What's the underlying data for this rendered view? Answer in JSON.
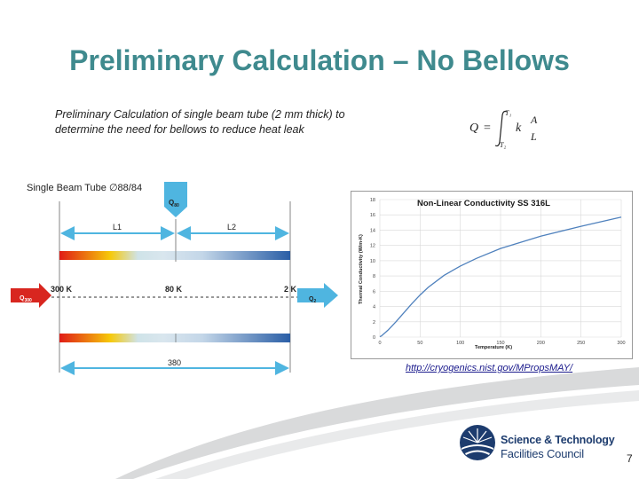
{
  "title": "Preliminary Calculation – No Bellows",
  "intro": {
    "line1": "Preliminary Calculation of single beam tube (2 mm thick) to",
    "line2": "determine the need for bellows to reduce heat leak"
  },
  "formula": {
    "lhs": "Q",
    "eq": "=",
    "upper": "T₁",
    "lower": "T₂",
    "k": "k",
    "frac_top": "A",
    "frac_bottom": "L"
  },
  "diagram": {
    "tube_label": "Single Beam Tube ∅88/84",
    "q80": "Q",
    "q80_sub": "80",
    "q300": "Q",
    "q300_sub": "300",
    "q2": "Q",
    "q2_sub": "2",
    "l1": "L1",
    "l2": "L2",
    "t300": "300 K",
    "t80": "80 K",
    "t2": "2 K",
    "length": "380"
  },
  "chart_data": {
    "type": "line",
    "title": "Non-Linear Conductivity SS 316L",
    "xlabel": "Temperature (K)",
    "ylabel": "Thermal Conductivity (W/m-K)",
    "xlim": [
      0,
      300
    ],
    "ylim": [
      0,
      18
    ],
    "x_ticks": [
      0,
      50,
      100,
      150,
      200,
      250,
      300
    ],
    "y_ticks": [
      0,
      2,
      4,
      6,
      8,
      10,
      12,
      14,
      16,
      18
    ],
    "grid": true,
    "series": [
      {
        "color": "#4f81bd",
        "x": [
          0,
          2,
          10,
          20,
          30,
          40,
          50,
          60,
          80,
          100,
          120,
          150,
          200,
          250,
          300
        ],
        "y": [
          0.05,
          0.15,
          0.9,
          2.0,
          3.2,
          4.4,
          5.5,
          6.5,
          8.1,
          9.3,
          10.3,
          11.6,
          13.2,
          14.5,
          15.7
        ]
      }
    ]
  },
  "link": "http://cryogenics.nist.gov/MPropsMAY/",
  "logo": {
    "line1": "Science & Technology",
    "line2": "Facilities Council"
  },
  "page_number": "7",
  "colors": {
    "title": "#3f8a8e",
    "arrow_blue": "#4fb5e0",
    "arrow_red": "#d8261f",
    "logo_blue": "#1d3c6e"
  }
}
